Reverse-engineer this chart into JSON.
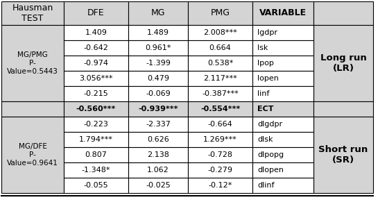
{
  "long_run_rows": [
    [
      "1.409",
      "1.489",
      "2.008***",
      "lgdpr"
    ],
    [
      "-0.642",
      "0.961*",
      "0.664",
      "lsk"
    ],
    [
      "-0.974",
      "-1.399",
      "0.538*",
      "lpop"
    ],
    [
      "3.056***",
      "0.479",
      "2.117***",
      "lopen"
    ],
    [
      "-0.215",
      "-0.069",
      "-0.387***",
      "linf"
    ]
  ],
  "ect_row": [
    "-0.560***",
    "-0.939***",
    "-0.554***",
    "ECT"
  ],
  "short_run_rows": [
    [
      "-0.223",
      "-2.337",
      "-0.664",
      "dlgdpr"
    ],
    [
      "1.794***",
      "0.626",
      "1.269***",
      "dlsk"
    ],
    [
      "0.807",
      "2.138",
      "-0.728",
      "dlpopg"
    ],
    [
      "-1.348*",
      "1.062",
      "-0.279",
      "dlopen"
    ],
    [
      "-0.055",
      "-0.025",
      "-0.12*",
      "dlinf"
    ]
  ],
  "hausman_lr": "MG/PMG\nP-\nValue=0.5443",
  "hausman_sr": "MG/DFE\nP-\nValue=0.9641",
  "long_run_label": "Long run\n(LR)",
  "short_run_label": "Short run\n(SR)",
  "header_labels": [
    "Hausman\nTEST",
    "DFE",
    "MG",
    "PMG",
    "VARIABLE"
  ],
  "gray_bg": "#d4d4d4",
  "white_bg": "#ffffff",
  "ect_bold": true,
  "font_size": 8.0,
  "header_font_size": 9.0,
  "side_label_font_size": 9.5
}
